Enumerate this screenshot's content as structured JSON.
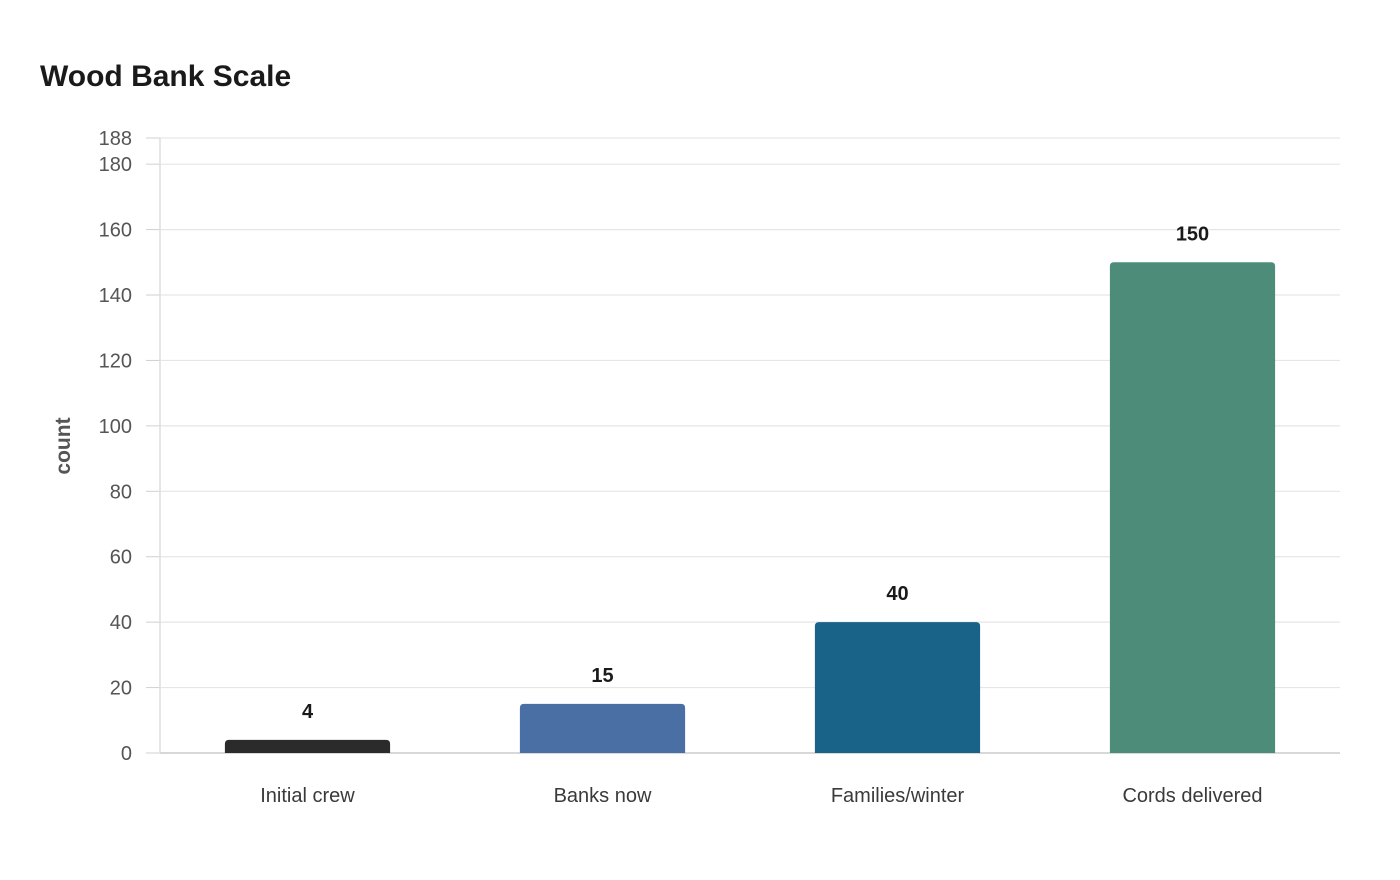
{
  "chart_data": {
    "type": "bar",
    "title": "Wood Bank Scale",
    "xlabel": "",
    "ylabel": "count",
    "categories": [
      "Initial crew",
      "Banks now",
      "Families/winter",
      "Cords delivered"
    ],
    "values": [
      4,
      15,
      40,
      150
    ],
    "value_labels": [
      "4",
      "15",
      "40",
      "150"
    ],
    "colors": [
      "#2b2b2b",
      "#4a6fa5",
      "#196388",
      "#4e8c7a"
    ],
    "ylim": [
      0,
      188
    ],
    "yticks": [
      0,
      20,
      40,
      60,
      80,
      100,
      120,
      140,
      160,
      180,
      188
    ],
    "ytick_labels": [
      "0",
      "20",
      "40",
      "60",
      "80",
      "100",
      "120",
      "140",
      "160",
      "180",
      "188"
    ],
    "grid": true,
    "legend": "none"
  }
}
